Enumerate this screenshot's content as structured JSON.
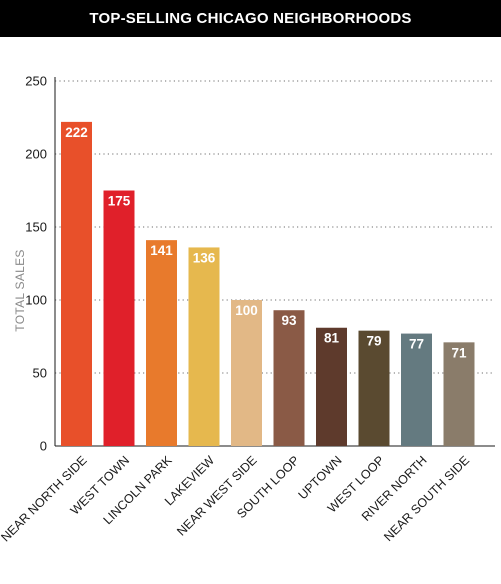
{
  "header": {
    "title": "TOP-SELLING CHICAGO NEIGHBORHOODS"
  },
  "chart_data": {
    "type": "bar",
    "title": "TOP-SELLING CHICAGO NEIGHBORHOODS",
    "xlabel": "",
    "ylabel": "TOTAL SALES",
    "ylim": [
      0,
      250
    ],
    "yticks": [
      0,
      50,
      100,
      150,
      200,
      250
    ],
    "grid": true,
    "categories": [
      "NEAR NORTH SIDE",
      "WEST TOWN",
      "LINCOLN PARK",
      "LAKEVIEW",
      "NEAR WEST SIDE",
      "SOUTH LOOP",
      "UPTOWN",
      "WEST LOOP",
      "RIVER NORTH",
      "NEAR SOUTH SIDE"
    ],
    "values": [
      222,
      175,
      141,
      136,
      100,
      93,
      81,
      79,
      77,
      71
    ],
    "colors": [
      "#e8502a",
      "#e0202a",
      "#e87a2c",
      "#e6b84e",
      "#e2b886",
      "#8a5a46",
      "#5e3a2c",
      "#5a4a30",
      "#647a80",
      "#8a7c6a"
    ]
  }
}
